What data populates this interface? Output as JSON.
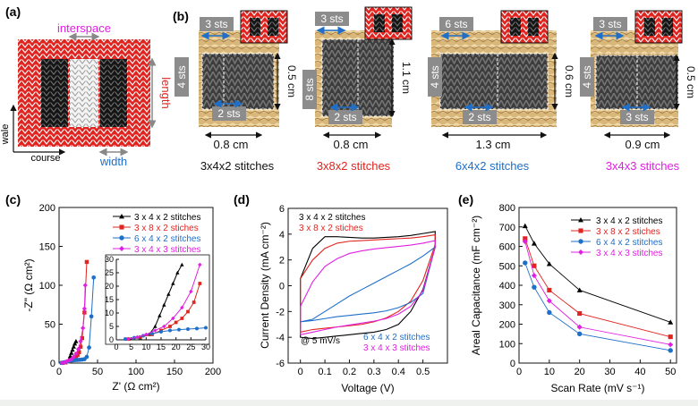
{
  "panel_labels": {
    "a": "(a)",
    "b": "(b)",
    "c": "(c)",
    "d": "(d)",
    "e": "(e)"
  },
  "panel_a": {
    "interspace": "interspace",
    "length": "length",
    "wale": "wale",
    "course": "course",
    "width": "width",
    "colors": {
      "red": "#e0241f",
      "black": "#1a1a1a",
      "white": "#d8d8d8",
      "magenta": "#e020e0",
      "blue": "#1f6fc8"
    }
  },
  "panel_b": {
    "samples": [
      {
        "top_sts": "3 sts",
        "side_sts": "4 sts",
        "bottom_sts": "2 sts",
        "height": "0.5 cm",
        "width": "0.8 cm",
        "caption": "3x4x2 stitches",
        "caption_color": "#111111"
      },
      {
        "top_sts": "3 sts",
        "side_sts": "8 sts",
        "bottom_sts": "2 sts",
        "height": "1.1 cm",
        "width": "0.8 cm",
        "caption": "3x8x2 stitches",
        "caption_color": "#e0241f"
      },
      {
        "top_sts": "6 sts",
        "side_sts": "4 sts",
        "bottom_sts": "2 sts",
        "height": "0.6 cm",
        "width": "1.3 cm",
        "caption": "6x4x2 stitches",
        "caption_color": "#1f6fc8"
      },
      {
        "top_sts": "3 sts",
        "side_sts": "4 sts",
        "bottom_sts": "3 sts",
        "height": "0.5 cm",
        "width": "0.9 cm",
        "caption": "3x4x3 stitches",
        "caption_color": "#e020e0"
      }
    ]
  },
  "chart_data": [
    {
      "panel": "c",
      "type": "scatter",
      "xlabel": "Z' (Ω cm²)",
      "ylabel": "-Z\" (Ω cm²)",
      "xlim": [
        0,
        200
      ],
      "ylim": [
        0,
        200
      ],
      "xticks": [
        "0",
        "50",
        "100",
        "150",
        "200"
      ],
      "yticks": [
        "0",
        "50",
        "100",
        "150",
        "200"
      ],
      "legend_position": "top-right",
      "series": [
        {
          "name": "3 x 4 x 2 stitches",
          "color": "#000000",
          "marker": "triangle",
          "x": [
            4,
            8,
            11,
            13,
            14.5,
            16,
            17.5,
            19,
            20.5,
            22
          ],
          "y": [
            0.3,
            0.8,
            2,
            5,
            9,
            13,
            17,
            21,
            25,
            28
          ]
        },
        {
          "name": "3 x 8 x 2 stiches",
          "color": "#e0241f",
          "marker": "square",
          "x": [
            4,
            8,
            12,
            15,
            18,
            20,
            22,
            24,
            26,
            28,
            30,
            33,
            36
          ],
          "y": [
            0.3,
            1,
            2,
            3.5,
            5,
            6.5,
            8,
            10.5,
            14,
            21,
            32,
            65,
            130
          ]
        },
        {
          "name": "6 x 4 x 2 stitches",
          "color": "#1f6fc8",
          "marker": "circle",
          "x": [
            3,
            6,
            9,
            12,
            15,
            18,
            21,
            24,
            27,
            30,
            33,
            36,
            39,
            42,
            45
          ],
          "y": [
            0.3,
            0.8,
            1.5,
            2.3,
            3,
            3.5,
            3.8,
            4,
            4.2,
            4.5,
            5,
            8,
            20,
            60,
            110
          ]
        },
        {
          "name": "3 x 4 x 3 stitches",
          "color": "#e020e0",
          "marker": "diamond",
          "x": [
            4,
            7,
            10,
            13,
            16,
            19,
            22,
            25,
            28,
            31,
            33,
            34
          ],
          "y": [
            0.3,
            1,
            2,
            3.5,
            5,
            8,
            12,
            18,
            28,
            45,
            70,
            100
          ]
        }
      ],
      "inset": {
        "xlim": [
          0,
          30
        ],
        "ylim": [
          0,
          30
        ],
        "xticks": [
          "0",
          "5",
          "10",
          "15",
          "20",
          "25",
          "30"
        ],
        "yticks": [
          "0",
          "5",
          "10",
          "15",
          "20",
          "25",
          "30"
        ]
      }
    },
    {
      "panel": "d",
      "type": "line",
      "xlabel": "Voltage (V)",
      "ylabel": "Current Density (mA cm⁻²)",
      "xlim": [
        -0.05,
        0.6
      ],
      "ylim": [
        -6,
        6
      ],
      "xticks": [
        "0",
        "0.1",
        "0.2",
        "0.3",
        "0.4",
        "0.5"
      ],
      "yticks": [
        "-6",
        "-4",
        "-2",
        "0",
        "2",
        "4",
        "6"
      ],
      "annotation": "@ 5 mV/s",
      "series": [
        {
          "name": "3 x 4 x 2 stitches",
          "color": "#000000",
          "upper": [
            0.55,
            2.9,
            3.8,
            3.8,
            3.75,
            3.7,
            3.7,
            3.75,
            3.8,
            3.9,
            4.05,
            4.2
          ],
          "lower": [
            -4.0,
            -4.1,
            -4.0,
            -3.9,
            -3.8,
            -3.7,
            -3.6,
            -3.4,
            -3.0,
            -2.0,
            -0.3,
            3.0
          ]
        },
        {
          "name": "3 x 8 x 2 stiches",
          "color": "#e0241f",
          "upper": [
            0.55,
            2.0,
            2.9,
            3.3,
            3.45,
            3.5,
            3.55,
            3.6,
            3.65,
            3.7,
            3.8,
            3.95
          ],
          "lower": [
            -3.6,
            -3.4,
            -3.3,
            -3.2,
            -3.1,
            -3.0,
            -2.8,
            -2.5,
            -2.0,
            -1.2,
            0.4,
            3.2
          ]
        },
        {
          "name": "6 x 4 x 2 stitches",
          "color": "#1f6fc8",
          "upper": [
            -2.8,
            -2.6,
            -2.0,
            -1.4,
            -0.8,
            -0.3,
            0.2,
            0.7,
            1.2,
            1.7,
            2.3,
            3.0
          ],
          "lower": [
            -2.8,
            -2.7,
            -2.55,
            -2.4,
            -2.3,
            -2.2,
            -2.1,
            -1.95,
            -1.7,
            -1.3,
            -0.6,
            3.0
          ]
        },
        {
          "name": "3 x 4 x 3 stitches",
          "color": "#e020e0",
          "upper": [
            -1.6,
            0.3,
            1.5,
            2.1,
            2.5,
            2.7,
            2.85,
            2.95,
            3.05,
            3.15,
            3.3,
            3.5
          ],
          "lower": [
            -3.8,
            -3.6,
            -3.4,
            -3.2,
            -3.05,
            -2.9,
            -2.75,
            -2.55,
            -2.2,
            -1.6,
            -0.4,
            3.0
          ]
        }
      ],
      "x_points": [
        0,
        0.05,
        0.1,
        0.15,
        0.2,
        0.25,
        0.3,
        0.35,
        0.4,
        0.45,
        0.5,
        0.55
      ]
    },
    {
      "panel": "e",
      "type": "line",
      "xlabel": "Scan Rate (mV s⁻¹)",
      "ylabel": "Areal Capacitance (mF cm⁻²)",
      "xlim": [
        0,
        52
      ],
      "ylim": [
        0,
        800
      ],
      "xticks": [
        "0",
        "10",
        "20",
        "30",
        "40",
        "50"
      ],
      "yticks": [
        "0",
        "100",
        "200",
        "300",
        "400",
        "500",
        "600",
        "700",
        "800"
      ],
      "legend_position": "top-right",
      "x": [
        2,
        5,
        10,
        20,
        50
      ],
      "series": [
        {
          "name": "3 x 4 x 2 stitches",
          "color": "#000000",
          "marker": "triangle",
          "values": [
            705,
            615,
            510,
            375,
            210
          ]
        },
        {
          "name": "3 x 8 x 2 stiches",
          "color": "#e0241f",
          "marker": "square",
          "values": [
            640,
            500,
            375,
            255,
            135
          ]
        },
        {
          "name": "6 x 4 x 2 stitches",
          "color": "#1f6fc8",
          "marker": "circle",
          "values": [
            515,
            390,
            260,
            150,
            65
          ]
        },
        {
          "name": "3 x 4 x 3 stitches",
          "color": "#e020e0",
          "marker": "diamond",
          "values": [
            625,
            450,
            320,
            185,
            95
          ]
        }
      ]
    }
  ]
}
